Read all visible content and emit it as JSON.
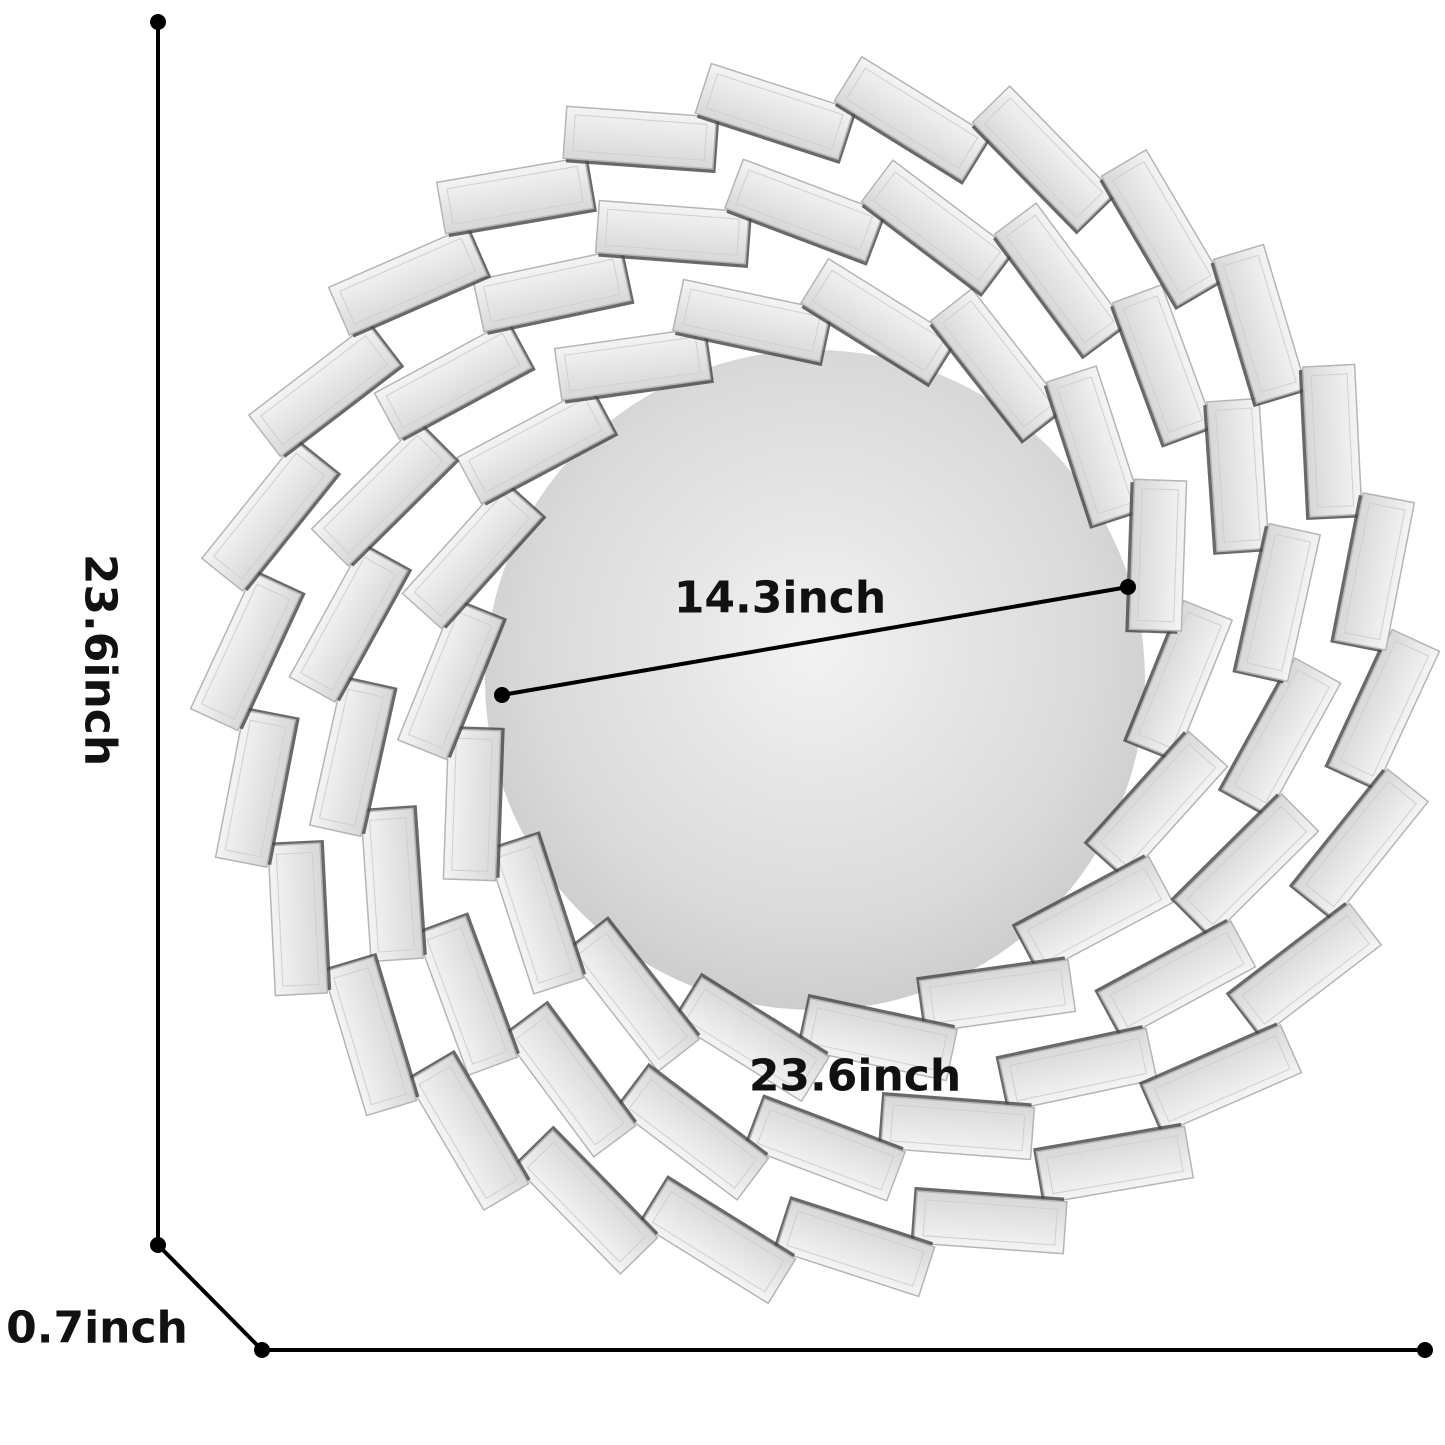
{
  "dimensions": {
    "height": "23.6inch",
    "width": "23.6inch",
    "depth": "0.7inch",
    "inner_mirror_diameter": "14.3inch"
  },
  "colors": {
    "line": "#000000",
    "brick": "#e4e4e4",
    "mirror": "#d9d9d9",
    "shadow": "#444444"
  }
}
